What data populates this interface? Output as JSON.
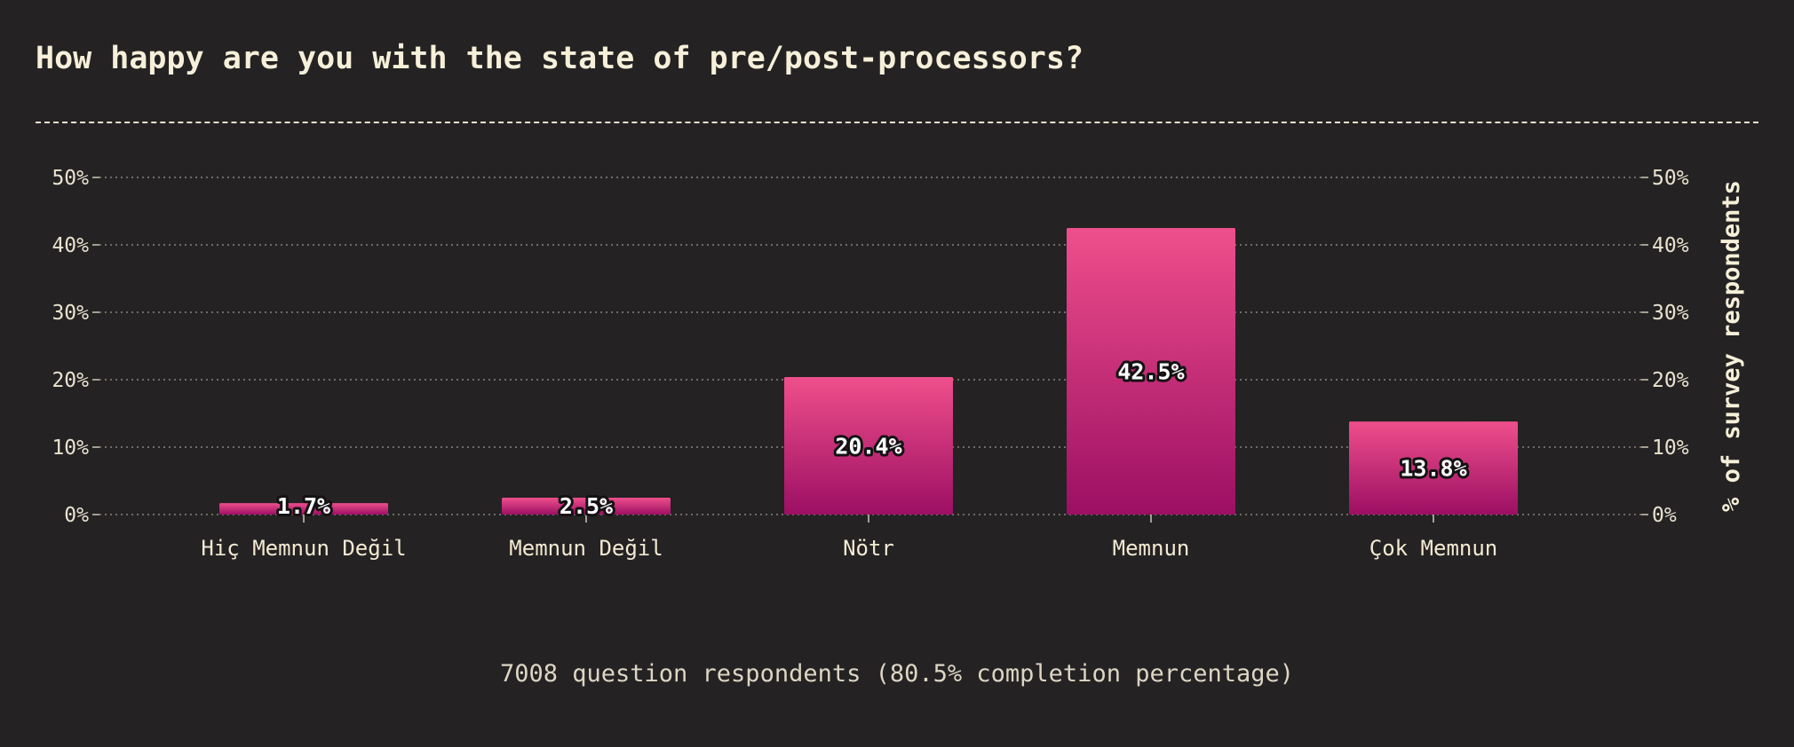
{
  "chart_data": {
    "type": "bar",
    "title": "How happy are you with the state of pre/post-processors?",
    "categories": [
      "Hiç Memnun Değil",
      "Memnun Değil",
      "Nötr",
      "Memnun",
      "Çok Memnun"
    ],
    "values": [
      1.7,
      2.5,
      20.4,
      42.5,
      13.8
    ],
    "value_labels": [
      "1.7%",
      "2.5%",
      "20.4%",
      "42.5%",
      "13.8%"
    ],
    "ylabel": "% of survey respondents",
    "ylim": [
      0,
      50
    ],
    "yticks": [
      "0%",
      "10%",
      "20%",
      "30%",
      "40%",
      "50%"
    ],
    "grid": true,
    "bar_color_top": "#ef4f8c",
    "bar_color_bottom": "#9c0f63",
    "footer": "7008 question respondents (80.5% completion percentage)"
  }
}
